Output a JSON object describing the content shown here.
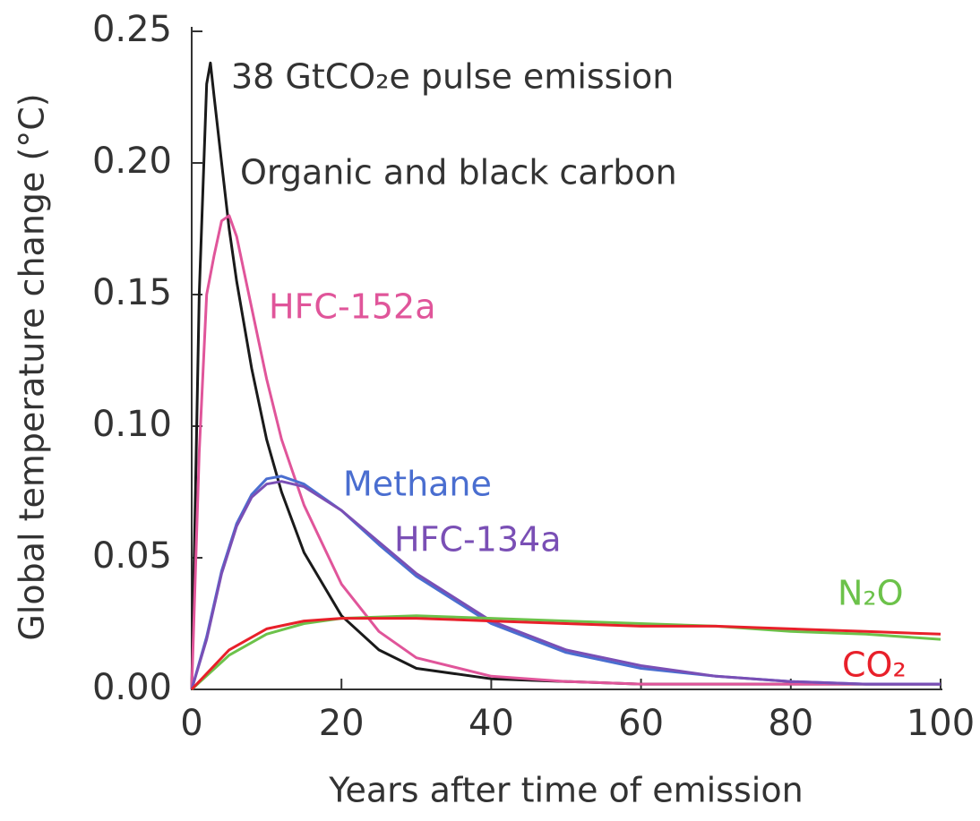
{
  "chart_data": {
    "type": "line",
    "title": "38 GtCO₂e pulse emission",
    "x_label": "Years after time of emission",
    "y_label": "Global temperature change (°C)",
    "xlim": [
      0,
      100
    ],
    "xticks": [
      0,
      20,
      40,
      60,
      80,
      100
    ],
    "ylim": [
      0,
      0.25
    ],
    "yticks": [
      {
        "value": 0,
        "label": "0.00"
      },
      {
        "value": 0.05,
        "label": "0.05"
      },
      {
        "value": 0.1,
        "label": "0.10"
      },
      {
        "value": 0.15,
        "label": "0.15"
      },
      {
        "value": 0.2,
        "label": "0.20"
      },
      {
        "value": 0.25,
        "label": "0.25"
      }
    ],
    "series": [
      {
        "name": "Organic and black carbon",
        "color": "#1a1a1a",
        "x": [
          0,
          1,
          2,
          2.5,
          3,
          4,
          5,
          6,
          8,
          10,
          12,
          15,
          20,
          25,
          30,
          40,
          50,
          60,
          70,
          80,
          90,
          100
        ],
        "values": [
          0,
          0.15,
          0.23,
          0.238,
          0.225,
          0.2,
          0.175,
          0.155,
          0.122,
          0.095,
          0.075,
          0.052,
          0.028,
          0.015,
          0.008,
          0.004,
          0.003,
          0.002,
          0.002,
          0.002,
          0.002,
          0.002
        ]
      },
      {
        "name": "HFC-152a",
        "color": "#e0559a",
        "x": [
          0,
          1,
          2,
          3,
          4,
          5,
          6,
          8,
          10,
          12,
          15,
          20,
          25,
          30,
          40,
          50,
          60,
          70,
          80,
          90,
          100
        ],
        "values": [
          0,
          0.09,
          0.15,
          0.165,
          0.178,
          0.18,
          0.172,
          0.145,
          0.118,
          0.095,
          0.07,
          0.04,
          0.022,
          0.012,
          0.005,
          0.003,
          0.002,
          0.002,
          0.002,
          0.002,
          0.002
        ]
      },
      {
        "name": "Methane",
        "color": "#4a6ed0",
        "x": [
          0,
          2,
          4,
          6,
          8,
          10,
          12,
          15,
          20,
          25,
          30,
          40,
          50,
          60,
          70,
          80,
          90,
          100
        ],
        "values": [
          0,
          0.02,
          0.045,
          0.063,
          0.074,
          0.08,
          0.081,
          0.078,
          0.068,
          0.055,
          0.043,
          0.025,
          0.014,
          0.008,
          0.005,
          0.003,
          0.002,
          0.002
        ]
      },
      {
        "name": "HFC-134a",
        "color": "#7a4fb5",
        "x": [
          0,
          2,
          4,
          6,
          8,
          10,
          12,
          15,
          20,
          25,
          30,
          40,
          50,
          60,
          70,
          80,
          90,
          100
        ],
        "values": [
          0,
          0.019,
          0.044,
          0.062,
          0.073,
          0.078,
          0.079,
          0.077,
          0.068,
          0.056,
          0.044,
          0.026,
          0.015,
          0.009,
          0.005,
          0.003,
          0.002,
          0.002
        ]
      },
      {
        "name": "N₂O",
        "color": "#6cc24a",
        "x": [
          0,
          5,
          10,
          15,
          20,
          30,
          40,
          50,
          60,
          70,
          80,
          90,
          100
        ],
        "values": [
          0,
          0.013,
          0.021,
          0.025,
          0.027,
          0.028,
          0.027,
          0.026,
          0.025,
          0.024,
          0.022,
          0.021,
          0.019
        ]
      },
      {
        "name": "CO₂",
        "color": "#e8202a",
        "x": [
          0,
          5,
          10,
          15,
          20,
          30,
          40,
          50,
          60,
          70,
          80,
          90,
          100
        ],
        "values": [
          0,
          0.015,
          0.023,
          0.026,
          0.027,
          0.027,
          0.026,
          0.025,
          0.024,
          0.024,
          0.023,
          0.022,
          0.021
        ]
      }
    ]
  }
}
